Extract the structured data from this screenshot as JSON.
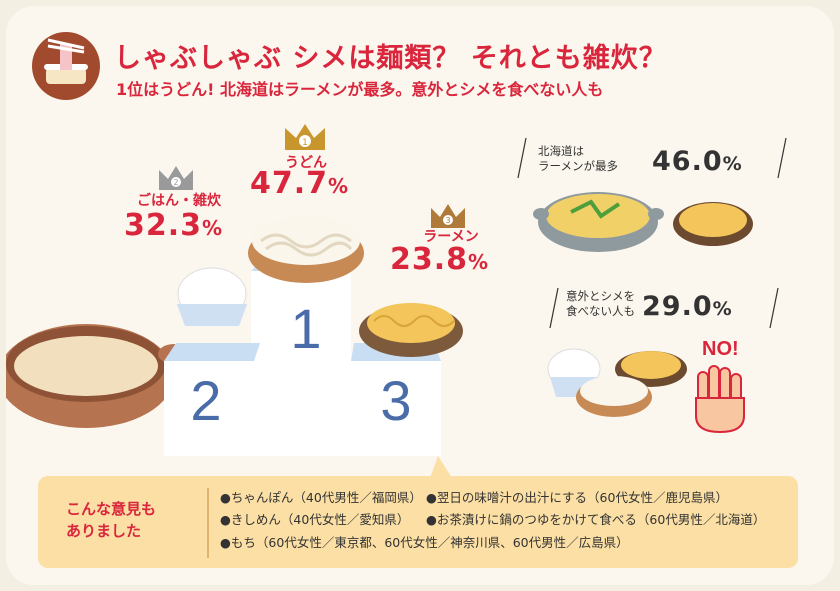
{
  "header": {
    "title": "しゃぶしゃぶ シメは麺類？ それとも雑炊？",
    "subtitle": "1位はうどん! 北海道はラーメンが最多。意外とシメを食べない人も"
  },
  "ranking": {
    "first": {
      "rank": "1",
      "label": "うどん",
      "value": "47.7",
      "unit": "%"
    },
    "second": {
      "rank": "2",
      "label": "ごはん・雑炊",
      "value": "32.3",
      "unit": "%"
    },
    "third": {
      "rank": "3",
      "label": "ラーメン",
      "value": "23.8",
      "unit": "%"
    }
  },
  "podium": {
    "first": "1",
    "second": "2",
    "third": "3"
  },
  "stats": {
    "hokkaido": {
      "label_line1": "北海道は",
      "label_line2": "ラーメンが最多",
      "value": "46.0",
      "unit": "%"
    },
    "no_shime": {
      "label_line1": "意外とシメを",
      "label_line2": "食べない人も",
      "value": "29.0",
      "unit": "%"
    }
  },
  "no_sign": "NO!",
  "opinions": {
    "heading_line1": "こんな意見も",
    "heading_line2": "ありました",
    "items": [
      "●ちゃんぽん（40代男性／福岡県）",
      "●翌日の味噌汁の出汁にする（60代女性／鹿児島県）",
      "●きしめん（40代女性／愛知県）",
      "●お茶漬けに鍋のつゆをかけて食べる（60代男性／北海道）",
      "●もち（60代女性／東京都、60代女性／神奈川県、60代男性／広島県）"
    ]
  },
  "chart_data": {
    "type": "bar",
    "categories": [
      "うどん",
      "ごはん・雑炊",
      "ラーメン"
    ],
    "values": [
      47.7,
      32.3,
      23.8
    ],
    "extra_stats": [
      {
        "label": "北海道はラーメンが最多",
        "value": 46.0
      },
      {
        "label": "意外とシメを食べない人も",
        "value": 29.0
      }
    ]
  },
  "colors": {
    "accent": "#d9263c",
    "podium_blue": "#4a6ca8",
    "bubble": "#fbdfa4",
    "crown_gold": "#c9962e",
    "crown_gray": "#9a9a9a"
  }
}
